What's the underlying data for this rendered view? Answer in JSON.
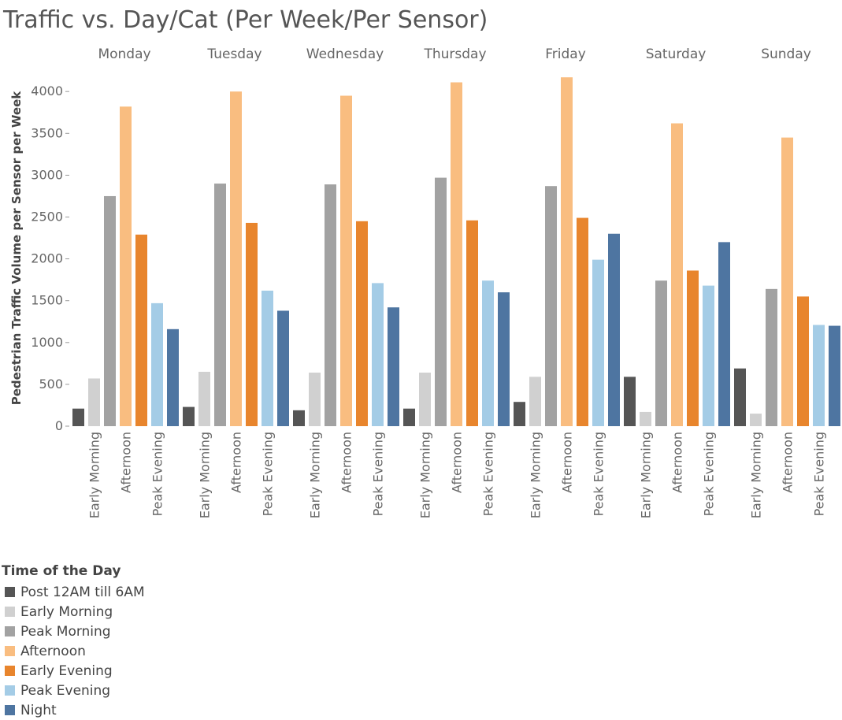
{
  "chart_data": {
    "type": "bar",
    "title": "Traffic vs. Day/Cat (Per Week/Per Sensor)",
    "ylabel": "Pedestrian Traffic Volume per Sensor per Week",
    "xlabel": "",
    "ylim": [
      0,
      4200
    ],
    "yticks": [
      0,
      500,
      1000,
      1500,
      2000,
      2500,
      3000,
      3500,
      4000
    ],
    "grid": false,
    "days": [
      "Monday",
      "Tuesday",
      "Wednesday",
      "Thursday",
      "Friday",
      "Saturday",
      "Sunday"
    ],
    "categories": [
      "Post 12AM till 6AM",
      "Early Morning",
      "Peak Morning",
      "Afternoon",
      "Early Evening",
      "Peak Evening",
      "Night"
    ],
    "tick_categories": [
      "Early Morning",
      "Afternoon",
      "Peak Evening"
    ],
    "legend_title": "Time of the Day",
    "legend_position": "bottom-left",
    "series": [
      {
        "name": "Post 12AM till 6AM",
        "color": "#555555",
        "values": [
          210,
          230,
          190,
          210,
          290,
          590,
          690
        ]
      },
      {
        "name": "Early Morning",
        "color": "#d0d0d0",
        "values": [
          570,
          650,
          640,
          640,
          590,
          170,
          150
        ]
      },
      {
        "name": "Peak Morning",
        "color": "#a2a2a2",
        "values": [
          2750,
          2900,
          2890,
          2970,
          2870,
          1740,
          1640
        ]
      },
      {
        "name": "Afternoon",
        "color": "#f9bd80",
        "values": [
          3820,
          4000,
          3950,
          4110,
          4170,
          3620,
          3450
        ]
      },
      {
        "name": "Early Evening",
        "color": "#e8852d",
        "values": [
          2290,
          2430,
          2450,
          2460,
          2490,
          1860,
          1550
        ]
      },
      {
        "name": "Peak Evening",
        "color": "#a4cce6",
        "values": [
          1470,
          1620,
          1710,
          1740,
          1990,
          1680,
          1210
        ]
      },
      {
        "name": "Night",
        "color": "#4e75a1",
        "values": [
          1160,
          1380,
          1420,
          1600,
          2300,
          2200,
          1200
        ]
      }
    ]
  }
}
